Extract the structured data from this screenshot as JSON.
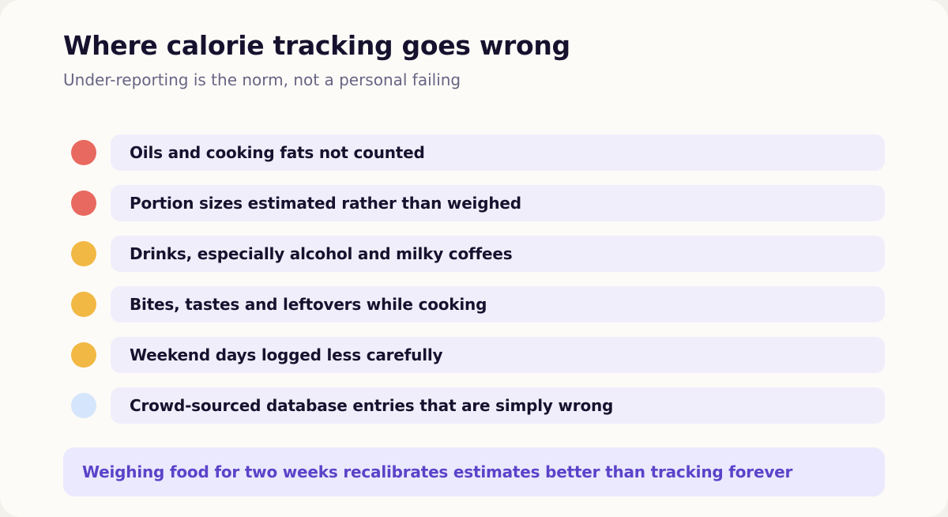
{
  "title": "Where calorie tracking goes wrong",
  "subtitle": "Under-reporting is the norm, not a personal failing",
  "colors": {
    "high": "#e8695f",
    "medium": "#f2b844",
    "low": "#d5e5fb",
    "pill_background": "#f1eefc",
    "callout_background": "#ebe9fd",
    "callout_text": "#5b43c9"
  },
  "items": [
    {
      "label": "Oils and cooking fats not counted",
      "level": "high"
    },
    {
      "label": "Portion sizes estimated rather than weighed",
      "level": "high"
    },
    {
      "label": "Drinks, especially alcohol and milky coffees",
      "level": "medium"
    },
    {
      "label": "Bites, tastes and leftovers while cooking",
      "level": "medium"
    },
    {
      "label": "Weekend days logged less carefully",
      "level": "medium"
    },
    {
      "label": "Crowd-sourced database entries that are simply wrong",
      "level": "low"
    }
  ],
  "callout": "Weighing food for two weeks recalibrates estimates better than tracking forever"
}
